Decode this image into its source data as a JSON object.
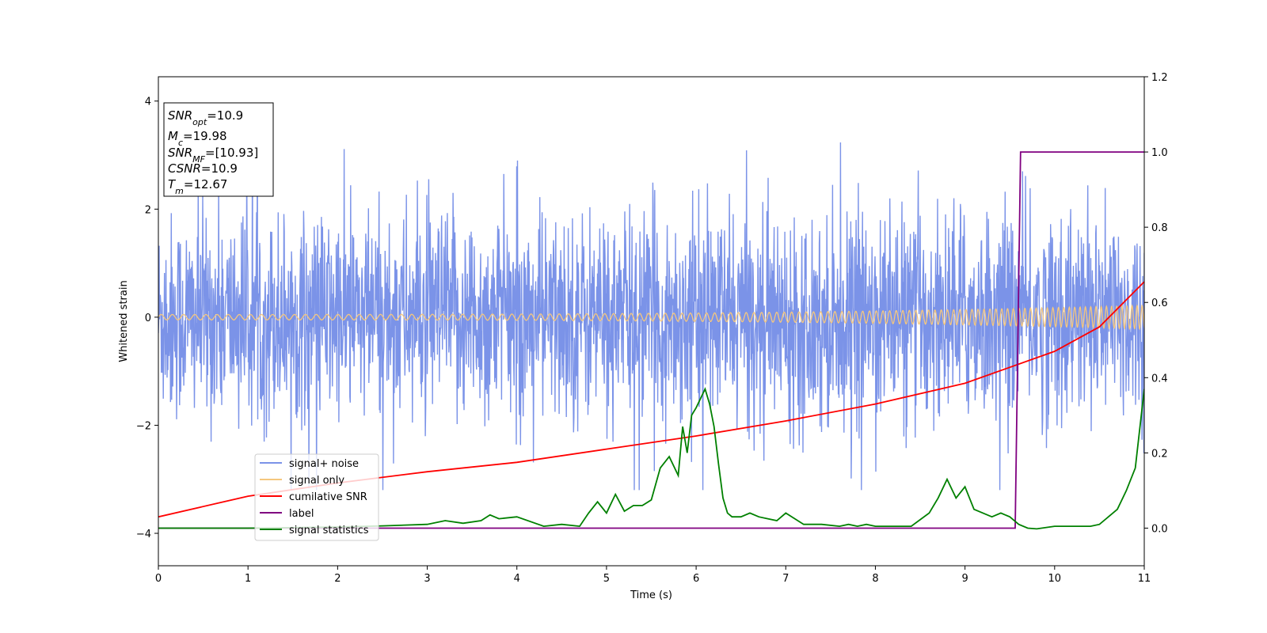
{
  "chart_data": {
    "type": "line",
    "xlabel": "Time (s)",
    "ylabel": "Whitened strain",
    "xlim": [
      0,
      11
    ],
    "ylim": [
      -4.6,
      4.45
    ],
    "y2lim": [
      -0.1,
      1.2
    ],
    "x_ticks": [
      0,
      1,
      2,
      3,
      4,
      5,
      6,
      7,
      8,
      9,
      10,
      11
    ],
    "y_ticks": [
      -4,
      -2,
      0,
      2,
      4
    ],
    "y2_ticks": [
      "0.0",
      "0.2",
      "0.4",
      "0.6",
      "0.8",
      "1.0",
      "1.2"
    ],
    "annotation": {
      "snr_opt": {
        "main": "SNR",
        "sub": "opt",
        "value": "=10.9"
      },
      "mc": {
        "main": "M",
        "sub": "c",
        "value": "=19.98"
      },
      "snr_mf": {
        "main": "SNR",
        "sub": "MF",
        "value": "=[10.93]"
      },
      "csnr": {
        "main": "CSNR",
        "value": "=10.9"
      },
      "tm": {
        "main": "T",
        "sub": "m",
        "value": "=12.67"
      }
    },
    "legend": {
      "placement": "lower-left",
      "entries": [
        "signal+ noise",
        "signal only",
        "cumilative SNR",
        "label",
        "signal statistics"
      ]
    },
    "series": [
      {
        "name": "signal+ noise",
        "axis": "left",
        "color": "#7b93e8",
        "description_values": {
          "envelope_approx": [
            -3.2,
            4.05
          ]
        }
      },
      {
        "name": "signal only",
        "axis": "left",
        "color": "#f5c77e",
        "amplitude_start": 0.05,
        "amplitude_end": 0.22,
        "frequency_start_hz": 8,
        "frequency_end_hz": 18
      },
      {
        "name": "cumilative SNR",
        "axis": "right",
        "color": "#ff0000",
        "x": [
          0,
          1,
          2,
          3,
          4,
          5,
          6,
          7,
          8,
          9,
          10,
          10.5,
          11
        ],
        "y": [
          0.03,
          0.085,
          0.12,
          0.15,
          0.175,
          0.21,
          0.245,
          0.285,
          0.33,
          0.385,
          0.47,
          0.535,
          0.655
        ]
      },
      {
        "name": "label",
        "axis": "right",
        "color": "#800080",
        "x": [
          0,
          9.56,
          9.62,
          11
        ],
        "y": [
          0.0,
          0.0,
          1.0,
          1.0
        ]
      },
      {
        "name": "signal statistics",
        "axis": "right",
        "color": "#008000",
        "x": [
          0,
          1,
          2,
          2.5,
          3,
          3.2,
          3.4,
          3.6,
          3.7,
          3.8,
          4.0,
          4.3,
          4.5,
          4.7,
          4.8,
          4.9,
          5.0,
          5.1,
          5.2,
          5.3,
          5.4,
          5.5,
          5.6,
          5.7,
          5.8,
          5.85,
          5.9,
          5.95,
          6.0,
          6.1,
          6.15,
          6.2,
          6.25,
          6.3,
          6.35,
          6.4,
          6.5,
          6.6,
          6.7,
          6.8,
          6.9,
          7.0,
          7.2,
          7.4,
          7.6,
          7.7,
          7.8,
          7.9,
          8.0,
          8.2,
          8.4,
          8.6,
          8.7,
          8.8,
          8.9,
          9.0,
          9.05,
          9.1,
          9.2,
          9.3,
          9.4,
          9.5,
          9.6,
          9.7,
          9.8,
          10.0,
          10.2,
          10.4,
          10.5,
          10.6,
          10.7,
          10.8,
          10.9,
          11.0
        ],
        "y": [
          0.0,
          0.0,
          0.003,
          0.006,
          0.01,
          0.02,
          0.013,
          0.02,
          0.035,
          0.025,
          0.03,
          0.005,
          0.01,
          0.005,
          0.04,
          0.07,
          0.04,
          0.09,
          0.045,
          0.06,
          0.06,
          0.075,
          0.16,
          0.19,
          0.14,
          0.27,
          0.2,
          0.3,
          0.32,
          0.37,
          0.33,
          0.27,
          0.17,
          0.08,
          0.04,
          0.03,
          0.03,
          0.04,
          0.03,
          0.025,
          0.02,
          0.04,
          0.01,
          0.01,
          0.005,
          0.01,
          0.005,
          0.01,
          0.005,
          0.005,
          0.005,
          0.04,
          0.08,
          0.13,
          0.08,
          0.11,
          0.08,
          0.05,
          0.04,
          0.03,
          0.04,
          0.03,
          0.01,
          0.0,
          -0.002,
          0.005,
          0.005,
          0.005,
          0.01,
          0.03,
          0.05,
          0.1,
          0.16,
          0.37
        ]
      }
    ]
  }
}
